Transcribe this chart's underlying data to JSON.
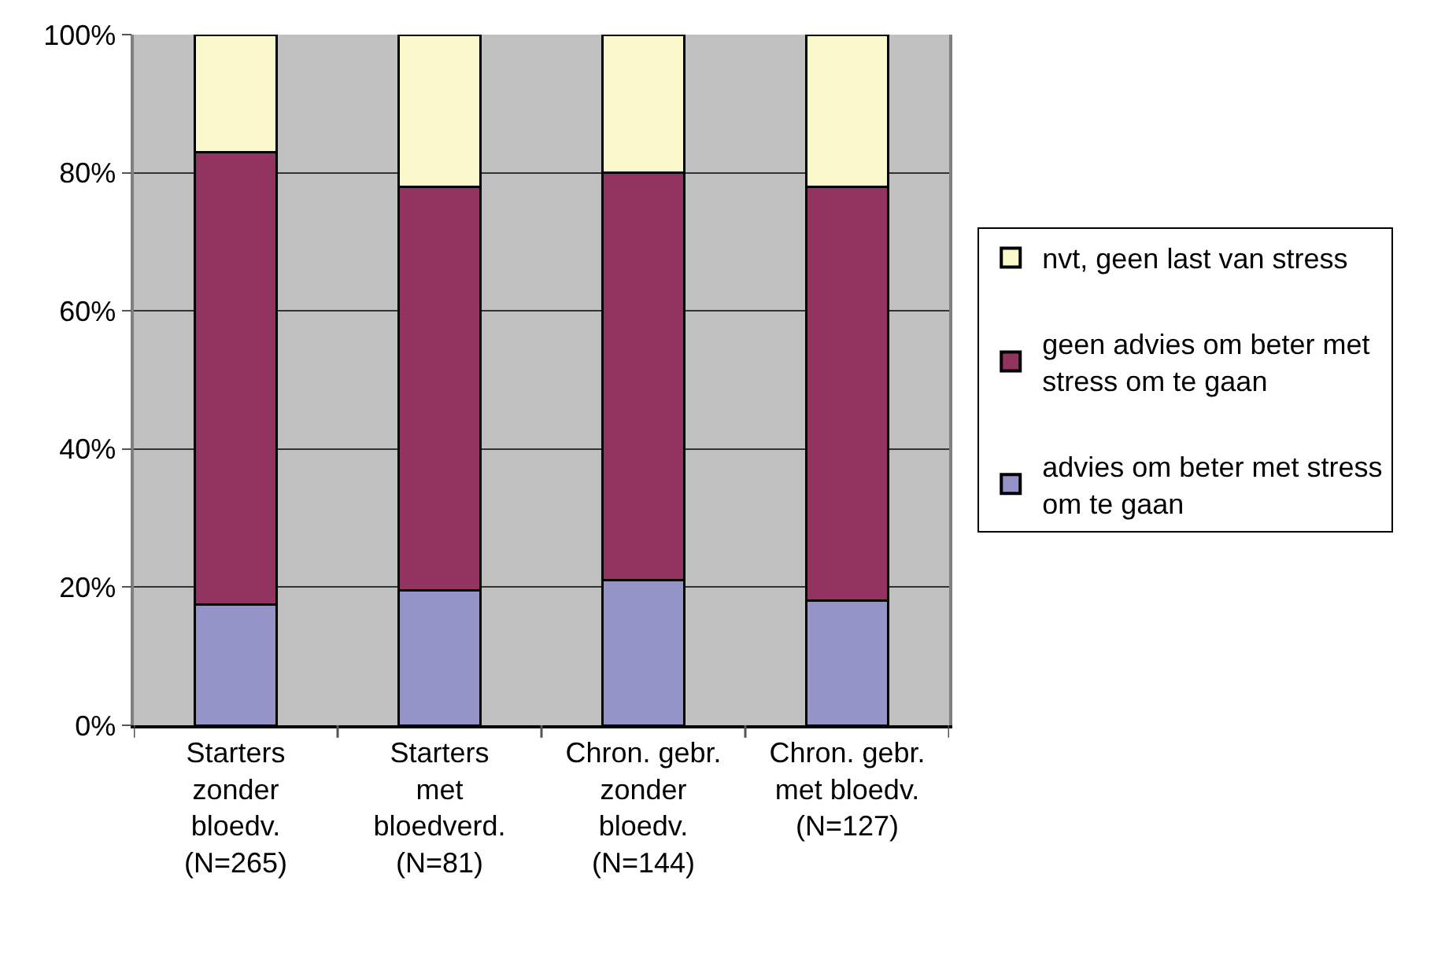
{
  "chart_data": {
    "type": "bar",
    "stacked": true,
    "categories": [
      "Starters\nzonder\nbloedv.\n(N=265)",
      "Starters\nmet\nbloedverd.\n(N=81)",
      "Chron. gebr.\nzonder\nbloedv.\n(N=144)",
      "Chron. gebr.\nmet bloedv.\n(N=127)"
    ],
    "series": [
      {
        "name": "advies om beter met stress\nom te gaan",
        "color": "#9494c8",
        "values": [
          17.5,
          19.5,
          21,
          18
        ]
      },
      {
        "name": "geen advies om beter met\nstress om te gaan",
        "color": "#933360",
        "values": [
          65.5,
          58.5,
          59,
          60
        ]
      },
      {
        "name": "nvt, geen last van stress",
        "color": "#fbf8cc",
        "values": [
          17,
          22,
          20,
          22
        ]
      }
    ],
    "ylim": [
      0,
      100
    ],
    "yticks": [
      {
        "value": 0,
        "label": "0%"
      },
      {
        "value": 20,
        "label": "20%"
      },
      {
        "value": 40,
        "label": "40%"
      },
      {
        "value": 60,
        "label": "60%"
      },
      {
        "value": 80,
        "label": "80%"
      },
      {
        "value": 100,
        "label": "100%"
      }
    ],
    "grid": "y",
    "legend": "right"
  }
}
